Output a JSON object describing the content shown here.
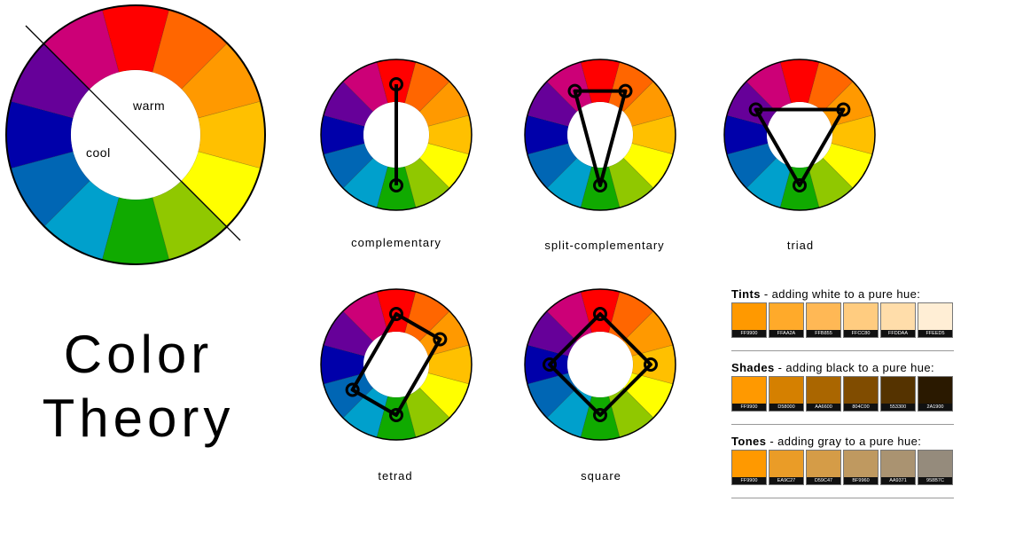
{
  "wheel": {
    "hues": [
      "#FF0000",
      "#FF6600",
      "#FF9900",
      "#FFC000",
      "#FFFF00",
      "#90C800",
      "#10AA00",
      "#00A0CC",
      "#0066B4",
      "#0000AA",
      "#660099",
      "#CC0077"
    ]
  },
  "main_wheel": {
    "warm_label": "warm",
    "cool_label": "cool"
  },
  "harmonies": [
    {
      "caption": "complementary",
      "markers": [
        0,
        6
      ]
    },
    {
      "caption": "split-complementary",
      "markers": [
        11,
        1,
        6
      ]
    },
    {
      "caption": "triad",
      "markers": [
        10,
        2,
        6
      ]
    },
    {
      "caption": "tetrad",
      "markers": [
        0,
        2,
        6,
        8
      ]
    },
    {
      "caption": "square",
      "markers": [
        0,
        3,
        6,
        9
      ]
    }
  ],
  "title": {
    "line1": "Color",
    "line2": "Theory"
  },
  "swatch_sections": [
    {
      "bold": "Tints",
      "rest": " - adding white to a pure hue:",
      "swatches": [
        {
          "hex": "#FF9900",
          "code": "FF9900"
        },
        {
          "hex": "#FFAA2A",
          "code": "FFAA2A"
        },
        {
          "hex": "#FFB855",
          "code": "FFB855"
        },
        {
          "hex": "#FFCC80",
          "code": "FFCC80"
        },
        {
          "hex": "#FFDDAA",
          "code": "FFDDAA"
        },
        {
          "hex": "#FFEED5",
          "code": "FFEED5"
        }
      ]
    },
    {
      "bold": "Shades",
      "rest": " - adding black to a pure hue:",
      "swatches": [
        {
          "hex": "#FF9900",
          "code": "FF9900"
        },
        {
          "hex": "#D58000",
          "code": "D58000"
        },
        {
          "hex": "#AA6600",
          "code": "AA6600"
        },
        {
          "hex": "#804C00",
          "code": "804C00"
        },
        {
          "hex": "#553300",
          "code": "553300"
        },
        {
          "hex": "#2A1900",
          "code": "2A1900"
        }
      ]
    },
    {
      "bold": "Tones",
      "rest": " - adding gray to a pure hue:",
      "swatches": [
        {
          "hex": "#FF9900",
          "code": "FF9900"
        },
        {
          "hex": "#EA9C27",
          "code": "EA9C27"
        },
        {
          "hex": "#D59C47",
          "code": "D59C47"
        },
        {
          "hex": "#BF9960",
          "code": "BF9960"
        },
        {
          "hex": "#AA9371",
          "code": "AA9371"
        },
        {
          "hex": "#958B7C",
          "code": "958B7C"
        }
      ]
    }
  ]
}
